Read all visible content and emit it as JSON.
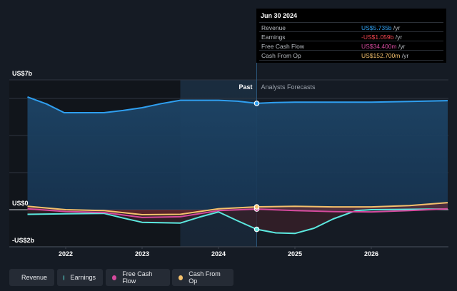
{
  "chart_data": {
    "type": "line",
    "title": "",
    "y_unit": "US$ billions",
    "ylim": [
      -2,
      7
    ],
    "y_tick_labels": [
      {
        "value": 7,
        "label": "US$7b"
      },
      {
        "value": 0,
        "label": "US$0"
      },
      {
        "value": -2,
        "label": "-US$2b"
      }
    ],
    "y_gridlines": [
      7,
      6,
      4,
      2,
      0
    ],
    "xlim": [
      2021.5,
      2027.0
    ],
    "x_ticks": [
      {
        "value": 2022,
        "label": "2022"
      },
      {
        "value": 2023,
        "label": "2023"
      },
      {
        "value": 2024,
        "label": "2024"
      },
      {
        "value": 2025,
        "label": "2025"
      },
      {
        "value": 2026,
        "label": "2026"
      }
    ],
    "divider": {
      "x": 2024.5,
      "past_label": "Past",
      "forecast_label": "Analysts Forecasts"
    },
    "highlight_band": [
      2023.5,
      2024.5
    ],
    "series": [
      {
        "name": "Revenue",
        "color": "#2f9ff0",
        "x": [
          2021.5,
          2021.75,
          2021.98,
          2022.25,
          2022.5,
          2022.75,
          2023.0,
          2023.25,
          2023.5,
          2023.75,
          2024.0,
          2024.25,
          2024.5,
          2024.75,
          2025.0,
          2025.5,
          2026.0,
          2026.5,
          2027.0
        ],
        "y": [
          6.08,
          5.7,
          5.23,
          5.23,
          5.23,
          5.35,
          5.5,
          5.72,
          5.9,
          5.9,
          5.9,
          5.85,
          5.735,
          5.78,
          5.8,
          5.8,
          5.8,
          5.84,
          5.88
        ]
      },
      {
        "name": "Earnings",
        "color": "#5ce9e0",
        "x": [
          2021.5,
          2022.0,
          2022.5,
          2022.75,
          2023.0,
          2023.25,
          2023.5,
          2023.75,
          2024.0,
          2024.25,
          2024.5,
          2024.75,
          2025.0,
          2025.25,
          2025.5,
          2025.8,
          2026.0,
          2026.5,
          2027.0
        ],
        "y": [
          -0.25,
          -0.22,
          -0.2,
          -0.45,
          -0.68,
          -0.7,
          -0.72,
          -0.4,
          -0.12,
          -0.6,
          -1.059,
          -1.25,
          -1.28,
          -1.0,
          -0.5,
          -0.05,
          0.0,
          0.02,
          0.04
        ]
      },
      {
        "name": "Free Cash Flow",
        "color": "#d64a9e",
        "x": [
          2021.5,
          2022.0,
          2022.5,
          2023.0,
          2023.5,
          2024.0,
          2024.5,
          2025.0,
          2025.5,
          2026.0,
          2026.5,
          2027.0
        ],
        "y": [
          0.05,
          -0.1,
          -0.15,
          -0.42,
          -0.38,
          -0.05,
          0.0344,
          -0.05,
          -0.1,
          -0.12,
          -0.05,
          0.05
        ]
      },
      {
        "name": "Cash From Op",
        "color": "#f5c16c",
        "x": [
          2021.5,
          2022.0,
          2022.5,
          2023.0,
          2023.5,
          2024.0,
          2024.5,
          2025.0,
          2025.5,
          2026.0,
          2026.5,
          2027.0
        ],
        "y": [
          0.18,
          0.0,
          -0.05,
          -0.27,
          -0.25,
          0.05,
          0.1527,
          0.18,
          0.15,
          0.15,
          0.22,
          0.38
        ]
      }
    ],
    "tooltip": {
      "date": "Jun 30 2024",
      "rows": [
        {
          "label": "Revenue",
          "value": "US$5.735b",
          "unit": " /yr",
          "color": "#2f9ff0"
        },
        {
          "label": "Earnings",
          "value": "-US$1.059b",
          "unit": " /yr",
          "color": "#f2444f"
        },
        {
          "label": "Free Cash Flow",
          "value": "US$34.400m",
          "unit": " /yr",
          "color": "#d64a9e"
        },
        {
          "label": "Cash From Op",
          "value": "US$152.700m",
          "unit": " /yr",
          "color": "#f5c16c"
        }
      ]
    },
    "legend": {
      "placement": "bottom-left",
      "items": [
        "Revenue",
        "Earnings",
        "Free Cash Flow",
        "Cash From Op"
      ]
    }
  }
}
